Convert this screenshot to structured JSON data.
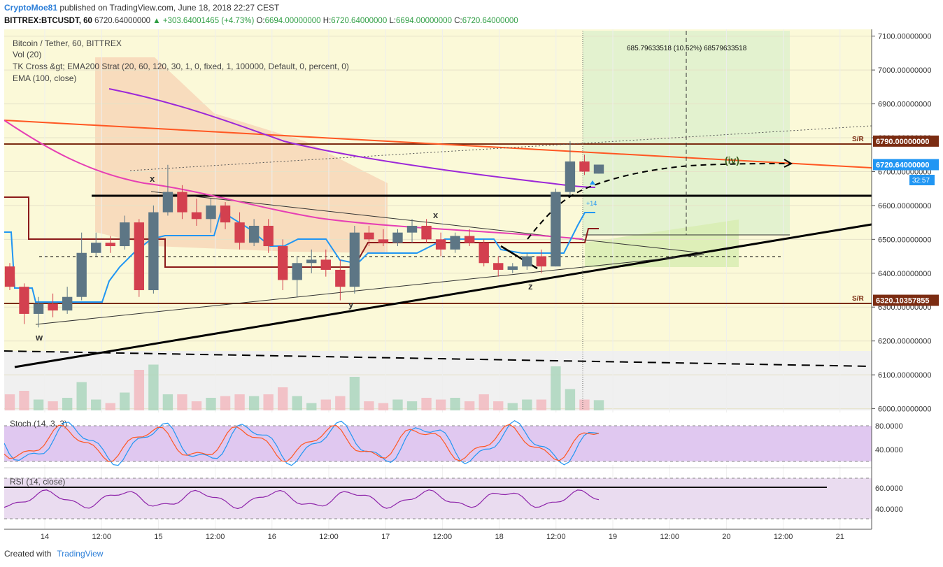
{
  "header": {
    "username": "CryptoMoe81",
    "published": "published on TradingView.com, June 18, 2018 22:27 CEST",
    "symbol": "BITTREX:BTCUSDT, 60",
    "last": "6720.64000000",
    "change": "+303.64001465 (+4.73%)",
    "o_label": "O:",
    "o": "6694.00000000",
    "h_label": "H:",
    "h": "6720.64000000",
    "l_label": "L:",
    "l": "6694.00000000",
    "c_label": "C:",
    "c": "6720.64000000"
  },
  "legend": {
    "title": "Bitcoin / Tether, 60, BITTREX",
    "vol": "Vol (20)",
    "strategy": "TK Cross &gt; EMA200 Strat (20, 60, 120, 30, 1, 0, fixed, 1, 100000, Default, 0, percent, 0)",
    "ema": "EMA (100, close)"
  },
  "labels": {
    "sr1": "S/R",
    "sr2": "S/R",
    "measure": "685.79633518 (10.52%) 68579633518",
    "wave_iv": "(iv)",
    "w": "w",
    "x1": "x",
    "y": "y",
    "x2": "x",
    "z": "z",
    "badge_plus": "+14",
    "countdown": "32:57"
  },
  "price_tags": [
    {
      "text": "6790.00000000",
      "value": 6790,
      "color": "#7b2c12"
    },
    {
      "text": "6720.64000000",
      "value": 6720.64,
      "color": "#2196f3"
    },
    {
      "text": "6320.10357855",
      "value": 6320.10357855,
      "color": "#7b2c12"
    }
  ],
  "stoch": {
    "title": "Stoch (14, 3, 3)",
    "ticks": [
      "80.0000",
      "40.0000"
    ]
  },
  "rsi": {
    "title": "RSI (14, close)",
    "ticks": [
      "60.0000",
      "40.0000"
    ]
  },
  "footer": {
    "created": "Created with",
    "brand": "TradingView"
  },
  "colors": {
    "up": "#5d7685",
    "down": "#d3404f",
    "ema100": "#e63fb4",
    "ema200": "#9c27d8",
    "trend": "#ff5722",
    "kijun": "#8b1a1a",
    "tenkan": "#2196f3"
  },
  "chart_data": {
    "type": "candlestick",
    "title": "Bitcoin / Tether, 60, BITTREX",
    "y_ticks": [
      7100,
      7000,
      6900,
      6800,
      6700,
      6600,
      6500,
      6400,
      6300,
      6200,
      6100,
      6000
    ],
    "y_tick_labels": [
      "7100.00000000",
      "7000.00000000",
      "6900.00000000",
      "6800.00000000",
      "6700.00000000",
      "6600.00000000",
      "6500.00000000",
      "6400.00000000",
      "6300.00000000",
      "6200.00000000",
      "6100.00000000",
      "6000.00000000"
    ],
    "ylim": [
      5995,
      7120
    ],
    "x_ticks": [
      "14",
      "12:00",
      "15",
      "12:00",
      "16",
      "12:00",
      "17",
      "12:00",
      "18",
      "12:00",
      "19",
      "12:00",
      "20",
      "12:00",
      "21"
    ],
    "horizontal_levels": [
      6790,
      6640,
      6320.10357855
    ],
    "ohlc": [
      {
        "t": 0,
        "o": 6420,
        "h": 6430,
        "l": 6350,
        "c": 6360
      },
      {
        "t": 1,
        "o": 6360,
        "h": 6370,
        "l": 6250,
        "c": 6280
      },
      {
        "t": 2,
        "o": 6280,
        "h": 6330,
        "l": 6240,
        "c": 6310
      },
      {
        "t": 3,
        "o": 6310,
        "h": 6340,
        "l": 6270,
        "c": 6290
      },
      {
        "t": 4,
        "o": 6290,
        "h": 6360,
        "l": 6280,
        "c": 6330
      },
      {
        "t": 5,
        "o": 6330,
        "h": 6520,
        "l": 6320,
        "c": 6460
      },
      {
        "t": 6,
        "o": 6460,
        "h": 6520,
        "l": 6450,
        "c": 6490
      },
      {
        "t": 7,
        "o": 6490,
        "h": 6510,
        "l": 6460,
        "c": 6480
      },
      {
        "t": 8,
        "o": 6480,
        "h": 6570,
        "l": 6470,
        "c": 6550
      },
      {
        "t": 9,
        "o": 6550,
        "h": 6560,
        "l": 6330,
        "c": 6350
      },
      {
        "t": 10,
        "o": 6350,
        "h": 6600,
        "l": 6340,
        "c": 6580
      },
      {
        "t": 11,
        "o": 6580,
        "h": 6720,
        "l": 6570,
        "c": 6640
      },
      {
        "t": 12,
        "o": 6640,
        "h": 6660,
        "l": 6560,
        "c": 6580
      },
      {
        "t": 13,
        "o": 6580,
        "h": 6620,
        "l": 6540,
        "c": 6560
      },
      {
        "t": 14,
        "o": 6560,
        "h": 6620,
        "l": 6520,
        "c": 6600
      },
      {
        "t": 15,
        "o": 6600,
        "h": 6610,
        "l": 6530,
        "c": 6550
      },
      {
        "t": 16,
        "o": 6550,
        "h": 6580,
        "l": 6470,
        "c": 6490
      },
      {
        "t": 17,
        "o": 6490,
        "h": 6560,
        "l": 6480,
        "c": 6540
      },
      {
        "t": 18,
        "o": 6540,
        "h": 6560,
        "l": 6460,
        "c": 6480
      },
      {
        "t": 19,
        "o": 6480,
        "h": 6500,
        "l": 6350,
        "c": 6380
      },
      {
        "t": 20,
        "o": 6380,
        "h": 6450,
        "l": 6330,
        "c": 6430
      },
      {
        "t": 21,
        "o": 6430,
        "h": 6470,
        "l": 6400,
        "c": 6440
      },
      {
        "t": 22,
        "o": 6440,
        "h": 6470,
        "l": 6390,
        "c": 6410
      },
      {
        "t": 23,
        "o": 6410,
        "h": 6440,
        "l": 6320,
        "c": 6360
      },
      {
        "t": 24,
        "o": 6360,
        "h": 6540,
        "l": 6340,
        "c": 6520
      },
      {
        "t": 25,
        "o": 6520,
        "h": 6540,
        "l": 6480,
        "c": 6500
      },
      {
        "t": 26,
        "o": 6500,
        "h": 6530,
        "l": 6480,
        "c": 6490
      },
      {
        "t": 27,
        "o": 6490,
        "h": 6530,
        "l": 6480,
        "c": 6520
      },
      {
        "t": 28,
        "o": 6520,
        "h": 6560,
        "l": 6490,
        "c": 6540
      },
      {
        "t": 29,
        "o": 6540,
        "h": 6560,
        "l": 6490,
        "c": 6500
      },
      {
        "t": 30,
        "o": 6500,
        "h": 6520,
        "l": 6450,
        "c": 6470
      },
      {
        "t": 31,
        "o": 6470,
        "h": 6520,
        "l": 6460,
        "c": 6510
      },
      {
        "t": 32,
        "o": 6510,
        "h": 6530,
        "l": 6480,
        "c": 6490
      },
      {
        "t": 33,
        "o": 6490,
        "h": 6500,
        "l": 6420,
        "c": 6430
      },
      {
        "t": 34,
        "o": 6430,
        "h": 6450,
        "l": 6390,
        "c": 6410
      },
      {
        "t": 35,
        "o": 6410,
        "h": 6430,
        "l": 6400,
        "c": 6420
      },
      {
        "t": 36,
        "o": 6420,
        "h": 6460,
        "l": 6410,
        "c": 6450
      },
      {
        "t": 37,
        "o": 6450,
        "h": 6470,
        "l": 6400,
        "c": 6420
      },
      {
        "t": 38,
        "o": 6420,
        "h": 6650,
        "l": 6420,
        "c": 6640
      },
      {
        "t": 39,
        "o": 6640,
        "h": 6790,
        "l": 6630,
        "c": 6730
      },
      {
        "t": 40,
        "o": 6730,
        "h": 6750,
        "l": 6690,
        "c": 6700
      },
      {
        "t": 41,
        "o": 6694,
        "h": 6720.64,
        "l": 6694,
        "c": 6720.64
      }
    ]
  }
}
